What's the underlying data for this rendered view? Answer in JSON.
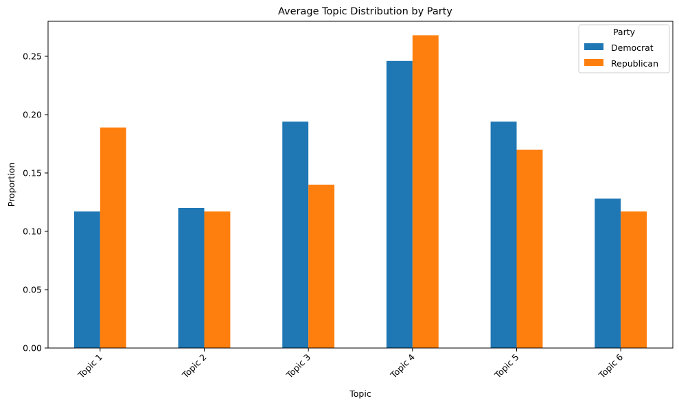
{
  "chart_data": {
    "type": "bar",
    "title": "Average Topic Distribution by Party",
    "xlabel": "Topic",
    "ylabel": "Proportion",
    "categories": [
      "Topic 1",
      "Topic 2",
      "Topic 3",
      "Topic 4",
      "Topic 5",
      "Topic 6"
    ],
    "series": [
      {
        "name": "Democrat",
        "color": "#1f77b4",
        "values": [
          0.117,
          0.12,
          0.194,
          0.246,
          0.194,
          0.128
        ]
      },
      {
        "name": "Republican",
        "color": "#ff7f0e",
        "values": [
          0.189,
          0.117,
          0.14,
          0.268,
          0.17,
          0.117
        ]
      }
    ],
    "ylim": [
      0,
      0.28
    ],
    "yticks": [
      "0.00",
      "0.05",
      "0.10",
      "0.15",
      "0.20",
      "0.25"
    ],
    "legend": {
      "title": "Party",
      "placement": "top-right"
    },
    "grid": false
  }
}
